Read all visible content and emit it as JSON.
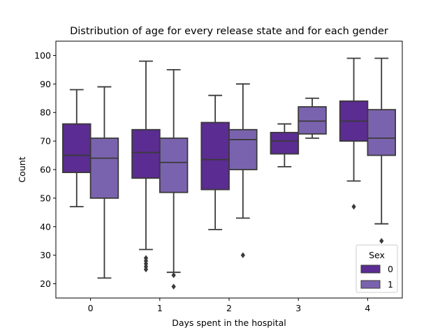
{
  "chart_data": {
    "type": "box",
    "title": "Distribution of age for every release state and for each gender",
    "xlabel": "Days spent in the hospital",
    "ylabel": "Count",
    "categories": [
      "0",
      "1",
      "2",
      "3",
      "4"
    ],
    "ylim": [
      15,
      105
    ],
    "yticks": [
      20,
      30,
      40,
      50,
      60,
      70,
      80,
      90,
      100
    ],
    "grid": false,
    "legend": {
      "title": "Sex",
      "position": "bottom-right"
    },
    "series": [
      {
        "name": "0",
        "color": "#5b2c91",
        "boxes": [
          {
            "whislo": 47,
            "q1": 59,
            "med": 65,
            "q3": 76,
            "whishi": 88,
            "fliers": []
          },
          {
            "whislo": 32,
            "q1": 57,
            "med": 66,
            "q3": 74,
            "whishi": 98,
            "fliers": [
              25,
              26,
              27,
              28,
              29
            ]
          },
          {
            "whislo": 39,
            "q1": 53,
            "med": 63.5,
            "q3": 76.5,
            "whishi": 86,
            "fliers": []
          },
          {
            "whislo": 61,
            "q1": 65.5,
            "med": 70,
            "q3": 73,
            "whishi": 76,
            "fliers": []
          },
          {
            "whislo": 56,
            "q1": 70,
            "med": 77,
            "q3": 84,
            "whishi": 99,
            "fliers": [
              47
            ]
          }
        ]
      },
      {
        "name": "1",
        "color": "#7a63ae",
        "boxes": [
          {
            "whislo": 22,
            "q1": 50,
            "med": 64,
            "q3": 71,
            "whishi": 89,
            "fliers": []
          },
          {
            "whislo": 24,
            "q1": 52,
            "med": 62.5,
            "q3": 71,
            "whishi": 95,
            "fliers": [
              19,
              23
            ]
          },
          {
            "whislo": 43,
            "q1": 60,
            "med": 70.5,
            "q3": 74,
            "whishi": 90,
            "fliers": [
              30
            ]
          },
          {
            "whislo": 71,
            "q1": 72.5,
            "med": 77,
            "q3": 82,
            "whishi": 85,
            "fliers": []
          },
          {
            "whislo": 41,
            "q1": 65,
            "med": 71,
            "q3": 81,
            "whishi": 99,
            "fliers": [
              35
            ]
          }
        ]
      }
    ]
  }
}
